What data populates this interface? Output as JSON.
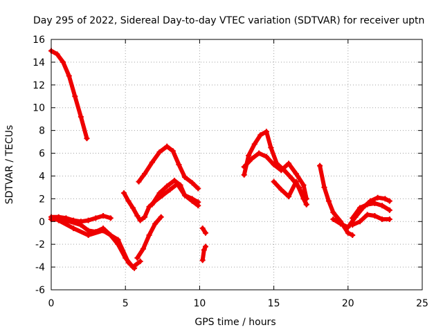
{
  "chart_data": {
    "type": "line",
    "title": "Day 295 of 2022, Sidereal Day-to-day VTEC variation (SDTVAR) for receiver uptn",
    "xlabel": "GPS time / hours",
    "ylabel": "SDTVAR / TECUs",
    "xlim": [
      0,
      25
    ],
    "ylim": [
      -6,
      16
    ],
    "xticks": [
      0,
      5,
      10,
      15,
      20,
      25
    ],
    "yticks": [
      -6,
      -4,
      -2,
      0,
      2,
      4,
      6,
      8,
      10,
      12,
      14,
      16
    ],
    "grid": true,
    "marker": "plus",
    "color": "#ee0000",
    "series": [
      {
        "name": "s1",
        "x": [
          0,
          0.4,
          0.8,
          1.2,
          1.6,
          2.0,
          2.4
        ],
        "y": [
          15,
          14.7,
          14.0,
          12.8,
          11.0,
          9.2,
          7.3
        ]
      },
      {
        "name": "s2",
        "x": [
          0,
          0.5,
          1.0,
          1.5,
          2.0,
          2.5,
          3.0,
          3.5,
          4.0
        ],
        "y": [
          0.4,
          0.4,
          0.3,
          0.1,
          0.0,
          0.1,
          0.3,
          0.5,
          0.3
        ]
      },
      {
        "name": "s3",
        "x": [
          0,
          1.0,
          2.0,
          2.5,
          3.0,
          3.5,
          4.0,
          4.5,
          5.0,
          5.5,
          6.0
        ],
        "y": [
          0.2,
          0.1,
          -0.3,
          -0.8,
          -0.9,
          -0.6,
          -1.2,
          -2.0,
          -3.2,
          -4.0,
          -3.5
        ]
      },
      {
        "name": "s4",
        "x": [
          0.5,
          1.5,
          2.5,
          3.5,
          4.5,
          5.2,
          5.6
        ],
        "y": [
          0.1,
          -0.6,
          -1.2,
          -0.8,
          -1.6,
          -3.6,
          -4.1
        ]
      },
      {
        "name": "s5",
        "x": [
          5.8,
          6.2,
          6.6,
          7.0,
          7.4
        ],
        "y": [
          -3.2,
          -2.4,
          -1.2,
          -0.2,
          0.4
        ]
      },
      {
        "name": "s6",
        "x": [
          4.9,
          5.2,
          5.5,
          5.8,
          6.0,
          6.3,
          6.6,
          7.0,
          7.5,
          8.0,
          8.5,
          9.0,
          9.5,
          9.9
        ],
        "y": [
          2.5,
          1.8,
          1.2,
          0.5,
          0.1,
          0.4,
          1.3,
          1.8,
          2.3,
          2.8,
          3.3,
          2.3,
          2.0,
          1.7
        ]
      },
      {
        "name": "s7",
        "x": [
          5.9,
          6.3,
          6.8,
          7.3,
          7.8,
          8.2,
          8.6,
          9.0,
          9.5,
          9.9
        ],
        "y": [
          3.5,
          4.2,
          5.2,
          6.1,
          6.6,
          6.2,
          5.0,
          3.9,
          3.4,
          2.9
        ]
      },
      {
        "name": "s8",
        "x": [
          6.8,
          7.3,
          7.8,
          8.3,
          8.7,
          9.0,
          9.5,
          9.9
        ],
        "y": [
          1.5,
          2.5,
          3.1,
          3.6,
          3.2,
          2.3,
          1.8,
          1.4
        ]
      },
      {
        "name": "s9",
        "x": [
          10.2,
          10.4
        ],
        "y": [
          -0.6,
          -1.0
        ]
      },
      {
        "name": "s10",
        "x": [
          10.2,
          10.3,
          10.4
        ],
        "y": [
          -3.4,
          -2.5,
          -2.2
        ]
      },
      {
        "name": "s11",
        "x": [
          13.0,
          13.3,
          13.7,
          14.1,
          14.5,
          14.8,
          15.2,
          15.7,
          16.2,
          16.7,
          17.2
        ],
        "y": [
          4.1,
          5.8,
          6.8,
          7.6,
          7.9,
          6.5,
          5.1,
          4.5,
          3.8,
          3.0,
          1.5
        ]
      },
      {
        "name": "s12",
        "x": [
          13.0,
          13.5,
          14.0,
          14.5,
          15.0,
          15.5,
          16.0,
          16.5,
          17.0,
          17.2
        ],
        "y": [
          4.8,
          5.5,
          6.0,
          5.7,
          5.0,
          4.5,
          5.1,
          4.2,
          3.2,
          2.0
        ]
      },
      {
        "name": "s13",
        "x": [
          15.0,
          15.5,
          16.0,
          16.5,
          17.0,
          17.2
        ],
        "y": [
          3.5,
          2.8,
          2.2,
          3.5,
          2.0,
          1.5
        ]
      },
      {
        "name": "s14",
        "x": [
          18.1,
          18.4,
          18.7,
          19.0,
          19.5,
          20.0,
          20.3
        ],
        "y": [
          4.9,
          3.0,
          1.8,
          0.8,
          0.0,
          -1.0,
          -1.2
        ]
      },
      {
        "name": "s15",
        "x": [
          19.0,
          19.5,
          20.0,
          20.5,
          21.0,
          21.5,
          22.0,
          22.5,
          22.8
        ],
        "y": [
          0.2,
          -0.2,
          -0.5,
          0.4,
          1.2,
          1.8,
          2.1,
          2.0,
          1.8
        ]
      },
      {
        "name": "s16",
        "x": [
          20.3,
          20.8,
          21.3,
          21.8,
          22.3,
          22.8
        ],
        "y": [
          0.3,
          1.2,
          1.5,
          1.6,
          1.4,
          1.0
        ]
      },
      {
        "name": "s17",
        "x": [
          20.3,
          20.8,
          21.3,
          21.8,
          22.3,
          22.8
        ],
        "y": [
          -0.3,
          0.0,
          0.6,
          0.5,
          0.2,
          0.2
        ]
      }
    ]
  }
}
